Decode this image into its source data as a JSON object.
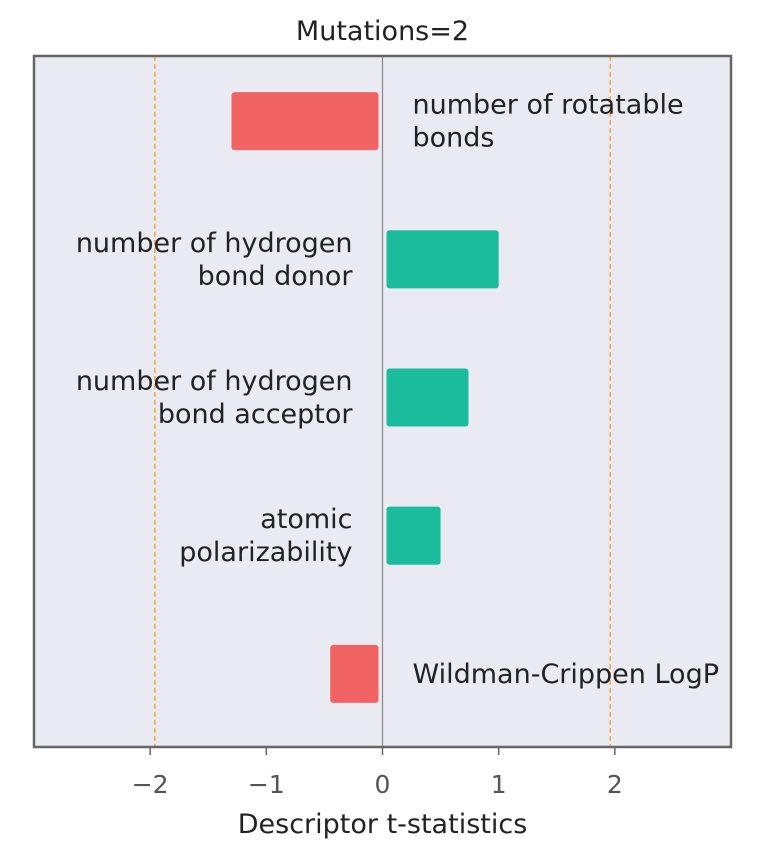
{
  "chart_data": {
    "type": "bar",
    "orientation": "horizontal",
    "title": "Mutations=2",
    "xlabel": "Descriptor t-statistics",
    "ylabel": "",
    "xlim": [
      -3,
      3
    ],
    "xticks": [
      -2,
      -1,
      0,
      1,
      2
    ],
    "xtick_labels": [
      "−2",
      "−1",
      "0",
      "1",
      "2"
    ],
    "threshold_lines": [
      -1.96,
      1.96
    ],
    "grid": false,
    "colors": {
      "negative": "#f26363",
      "positive": "#1abc9c",
      "threshold": "#f5a742",
      "background": "#eaeaf2",
      "frame": "#666666",
      "zero_line": "#888888"
    },
    "categories": [
      [
        "number of rotatable",
        "bonds"
      ],
      [
        "number of hydrogen",
        "bond donor"
      ],
      [
        "number of hydrogen",
        "bond acceptor"
      ],
      [
        "atomic",
        "polarizability"
      ],
      [
        "Wildman-Crippen LogP"
      ]
    ],
    "values": [
      -1.3,
      1.0,
      0.74,
      0.5,
      -0.45
    ]
  }
}
